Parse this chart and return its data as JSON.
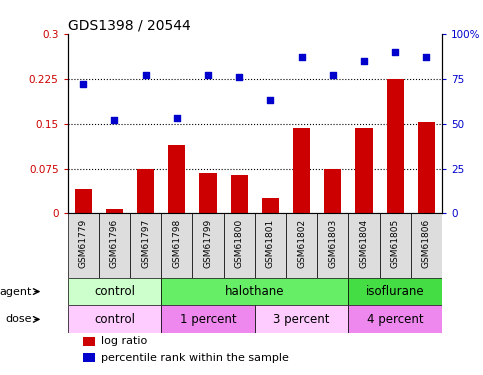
{
  "title": "GDS1398 / 20544",
  "samples": [
    "GSM61779",
    "GSM61796",
    "GSM61797",
    "GSM61798",
    "GSM61799",
    "GSM61800",
    "GSM61801",
    "GSM61802",
    "GSM61803",
    "GSM61804",
    "GSM61805",
    "GSM61806"
  ],
  "log_ratio": [
    0.04,
    0.007,
    0.075,
    0.115,
    0.068,
    0.065,
    0.025,
    0.143,
    0.075,
    0.142,
    0.225,
    0.152
  ],
  "percentile_rank": [
    72,
    52,
    77,
    53,
    77,
    76,
    63,
    87,
    77,
    85,
    90,
    87
  ],
  "bar_color": "#cc0000",
  "dot_color": "#0000cc",
  "ylim_left": [
    0,
    0.3
  ],
  "ylim_right": [
    0,
    100
  ],
  "yticks_left": [
    0,
    0.075,
    0.15,
    0.225,
    0.3
  ],
  "yticks_right": [
    0,
    25,
    50,
    75,
    100
  ],
  "ytick_labels_left": [
    "0",
    "0.075",
    "0.15",
    "0.225",
    "0.3"
  ],
  "ytick_labels_right": [
    "0",
    "25",
    "50",
    "75",
    "100%"
  ],
  "hlines": [
    0.075,
    0.15,
    0.225
  ],
  "agent_groups": [
    {
      "label": "control",
      "start": 0,
      "end": 3,
      "color": "#ccffcc"
    },
    {
      "label": "halothane",
      "start": 3,
      "end": 9,
      "color": "#66ee66"
    },
    {
      "label": "isoflurane",
      "start": 9,
      "end": 12,
      "color": "#44dd44"
    }
  ],
  "dose_groups": [
    {
      "label": "control",
      "start": 0,
      "end": 3,
      "color": "#ffccff"
    },
    {
      "label": "1 percent",
      "start": 3,
      "end": 6,
      "color": "#ee88ee"
    },
    {
      "label": "3 percent",
      "start": 6,
      "end": 9,
      "color": "#ffccff"
    },
    {
      "label": "4 percent",
      "start": 9,
      "end": 12,
      "color": "#ee88ee"
    }
  ],
  "legend_log_ratio": "log ratio",
  "legend_percentile": "percentile rank within the sample",
  "agent_label": "agent",
  "dose_label": "dose",
  "bar_width": 0.55,
  "tick_color_left": "#cc0000",
  "tick_color_right": "#0000cc",
  "bg_color": "#dddddd",
  "plot_bg": "#ffffff"
}
